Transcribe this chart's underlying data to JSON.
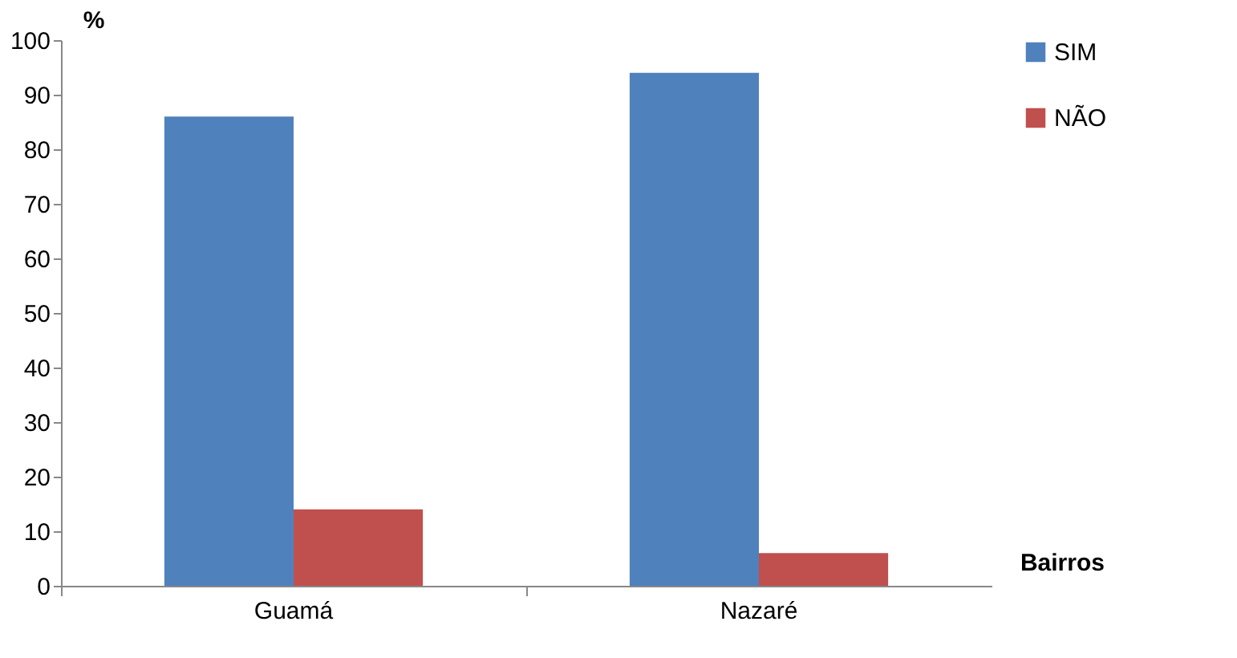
{
  "chart_data": {
    "type": "bar",
    "categories": [
      "Guamá",
      "Nazaré"
    ],
    "series": [
      {
        "name": "SIM",
        "color": "#4f81bd",
        "values": [
          86,
          94
        ]
      },
      {
        "name": "NÃO",
        "color": "#c0504d",
        "values": [
          14,
          6
        ]
      }
    ],
    "xlabel": "Bairros",
    "ylabel": "%",
    "ylim": [
      0,
      100
    ],
    "yticks": [
      0,
      10,
      20,
      30,
      40,
      50,
      60,
      70,
      80,
      90,
      100
    ],
    "grid": false,
    "legend": "right"
  }
}
